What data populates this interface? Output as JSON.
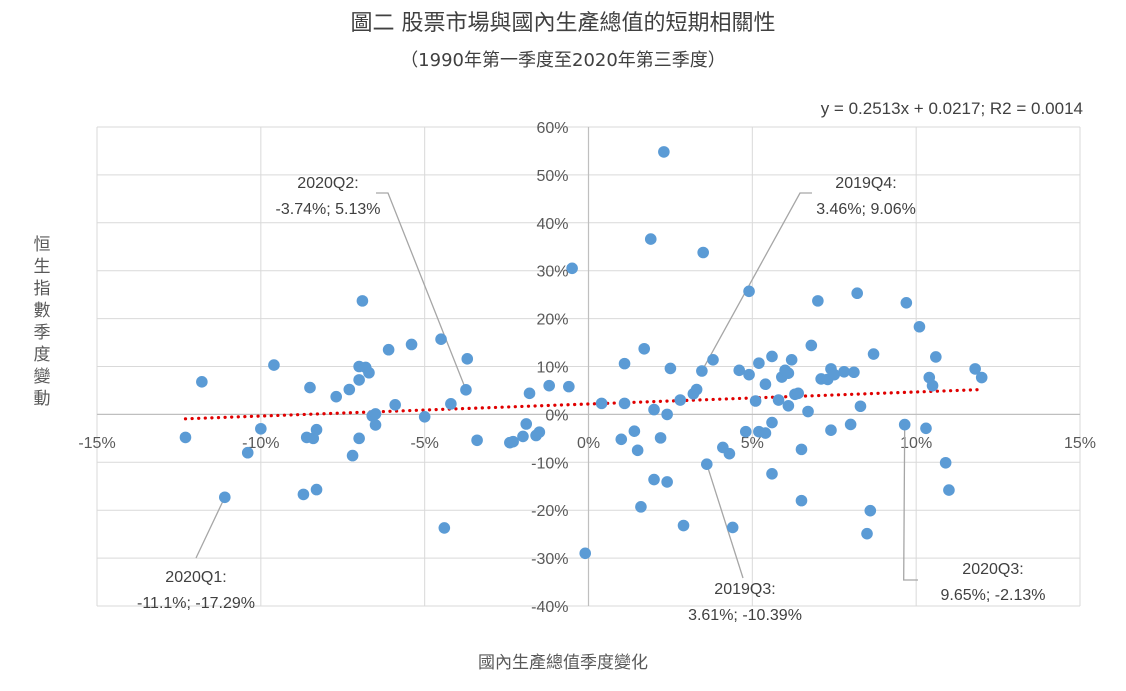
{
  "title": "圖二 股票市場與國內生產總值的短期相關性",
  "subtitle": "（1990年第一季度至2020年第三季度）",
  "chart_data": {
    "type": "scatter",
    "xlabel": "國內生產總值季度變化",
    "ylabel": "恒生指數季度變動",
    "xlim": [
      -0.15,
      0.15
    ],
    "ylim": [
      -0.4,
      0.6
    ],
    "x_ticks": [
      "-15%",
      "-10%",
      "-5%",
      "0%",
      "5%",
      "10%",
      "15%"
    ],
    "y_ticks": [
      "60%",
      "50%",
      "40%",
      "30%",
      "20%",
      "10%",
      "0%",
      "-10%",
      "-20%",
      "-30%",
      "-40%"
    ],
    "grid": "vertical and horizontal major gridlines",
    "point_color": "#5b9bd5",
    "trendline": {
      "type": "linear",
      "slope": 0.2513,
      "intercept": 0.0217,
      "color": "#e00000",
      "style": "dotted",
      "x_range": [
        -0.123,
        0.12
      ],
      "equation_label": "y = 0.2513x + 0.0217; R2 = 0.0014"
    },
    "annotations": [
      {
        "name": "2020Q2",
        "line1": "2020Q2:",
        "line2": "-3.74%; 5.13%",
        "x": -0.0374,
        "y": 0.0513
      },
      {
        "name": "2019Q4",
        "line1": "2019Q4:",
        "line2": "3.46%; 9.06%",
        "x": 0.0346,
        "y": 0.0906
      },
      {
        "name": "2020Q1",
        "line1": "2020Q1:",
        "line2": "-11.1%; -17.29%",
        "x": -0.111,
        "y": -0.1729
      },
      {
        "name": "2019Q3",
        "line1": "2019Q3:",
        "line2": "3.61%; -10.39%",
        "x": 0.0361,
        "y": -0.1039
      },
      {
        "name": "2020Q3",
        "line1": "2020Q3:",
        "line2": "9.65%; -2.13%",
        "x": 0.0965,
        "y": -0.0213
      }
    ],
    "points": [
      [
        -0.123,
        -0.048
      ],
      [
        -0.118,
        0.068
      ],
      [
        -0.104,
        -0.08
      ],
      [
        -0.1,
        -0.03
      ],
      [
        -0.096,
        0.103
      ],
      [
        -0.111,
        -0.173
      ],
      [
        -0.087,
        -0.167
      ],
      [
        -0.086,
        -0.048
      ],
      [
        -0.085,
        0.056
      ],
      [
        -0.084,
        -0.05
      ],
      [
        -0.083,
        -0.157
      ],
      [
        -0.083,
        -0.032
      ],
      [
        -0.077,
        0.037
      ],
      [
        -0.073,
        0.052
      ],
      [
        -0.072,
        -0.086
      ],
      [
        -0.07,
        0.072
      ],
      [
        -0.07,
        -0.05
      ],
      [
        -0.07,
        0.1
      ],
      [
        -0.069,
        0.237
      ],
      [
        -0.068,
        0.098
      ],
      [
        -0.067,
        0.087
      ],
      [
        -0.066,
        -0.003
      ],
      [
        -0.065,
        -0.022
      ],
      [
        -0.065,
        0.001
      ],
      [
        -0.061,
        0.135
      ],
      [
        -0.059,
        0.02
      ],
      [
        -0.054,
        0.146
      ],
      [
        -0.05,
        -0.005
      ],
      [
        -0.045,
        0.157
      ],
      [
        -0.044,
        -0.237
      ],
      [
        -0.042,
        0.022
      ],
      [
        -0.0374,
        0.0513
      ],
      [
        -0.037,
        0.116
      ],
      [
        -0.034,
        -0.054
      ],
      [
        -0.024,
        -0.059
      ],
      [
        -0.023,
        -0.057
      ],
      [
        -0.02,
        -0.046
      ],
      [
        -0.019,
        -0.02
      ],
      [
        -0.018,
        0.044
      ],
      [
        -0.016,
        -0.044
      ],
      [
        -0.015,
        -0.037
      ],
      [
        -0.012,
        0.06
      ],
      [
        -0.006,
        0.058
      ],
      [
        -0.005,
        0.305
      ],
      [
        -0.001,
        -0.29
      ],
      [
        0.004,
        0.023
      ],
      [
        0.01,
        -0.052
      ],
      [
        0.011,
        0.106
      ],
      [
        0.011,
        0.023
      ],
      [
        0.014,
        -0.035
      ],
      [
        0.015,
        -0.075
      ],
      [
        0.016,
        -0.193
      ],
      [
        0.017,
        0.137
      ],
      [
        0.019,
        0.366
      ],
      [
        0.02,
        0.01
      ],
      [
        0.02,
        -0.136
      ],
      [
        0.022,
        -0.049
      ],
      [
        0.023,
        0.548
      ],
      [
        0.024,
        -0.141
      ],
      [
        0.024,
        0.0
      ],
      [
        0.025,
        0.096
      ],
      [
        0.028,
        0.03
      ],
      [
        0.029,
        -0.232
      ],
      [
        0.032,
        0.043
      ],
      [
        0.033,
        0.052
      ],
      [
        0.0346,
        0.0906
      ],
      [
        0.035,
        0.338
      ],
      [
        0.0361,
        -0.1039
      ],
      [
        0.038,
        0.114
      ],
      [
        0.041,
        -0.069
      ],
      [
        0.043,
        -0.082
      ],
      [
        0.044,
        -0.236
      ],
      [
        0.046,
        0.092
      ],
      [
        0.048,
        -0.036
      ],
      [
        0.049,
        0.083
      ],
      [
        0.049,
        0.257
      ],
      [
        0.051,
        0.028
      ],
      [
        0.052,
        -0.036
      ],
      [
        0.052,
        0.107
      ],
      [
        0.054,
        -0.039
      ],
      [
        0.054,
        0.063
      ],
      [
        0.056,
        -0.124
      ],
      [
        0.056,
        -0.017
      ],
      [
        0.056,
        0.121
      ],
      [
        0.058,
        0.03
      ],
      [
        0.059,
        0.078
      ],
      [
        0.06,
        0.092
      ],
      [
        0.061,
        0.086
      ],
      [
        0.061,
        0.018
      ],
      [
        0.062,
        0.114
      ],
      [
        0.063,
        0.042
      ],
      [
        0.064,
        0.044
      ],
      [
        0.065,
        -0.073
      ],
      [
        0.065,
        -0.18
      ],
      [
        0.067,
        0.006
      ],
      [
        0.068,
        0.144
      ],
      [
        0.07,
        0.237
      ],
      [
        0.071,
        0.074
      ],
      [
        0.073,
        0.073
      ],
      [
        0.074,
        -0.033
      ],
      [
        0.074,
        0.095
      ],
      [
        0.075,
        0.083
      ],
      [
        0.078,
        0.089
      ],
      [
        0.08,
        -0.021
      ],
      [
        0.081,
        0.088
      ],
      [
        0.082,
        0.253
      ],
      [
        0.083,
        0.017
      ],
      [
        0.085,
        -0.249
      ],
      [
        0.086,
        -0.201
      ],
      [
        0.087,
        0.126
      ],
      [
        0.0965,
        -0.0213
      ],
      [
        0.097,
        0.233
      ],
      [
        0.101,
        0.183
      ],
      [
        0.103,
        -0.029
      ],
      [
        0.104,
        0.077
      ],
      [
        0.105,
        0.06
      ],
      [
        0.106,
        0.12
      ],
      [
        0.109,
        -0.101
      ],
      [
        0.11,
        -0.158
      ],
      [
        0.118,
        0.095
      ],
      [
        0.12,
        0.077
      ]
    ]
  }
}
